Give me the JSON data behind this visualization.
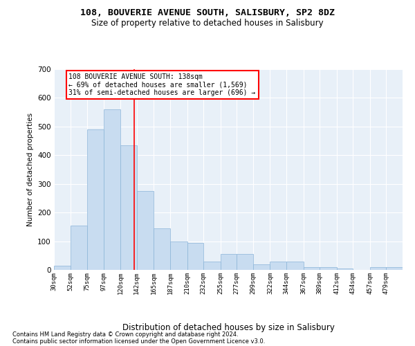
{
  "title": "108, BOUVERIE AVENUE SOUTH, SALISBURY, SP2 8DZ",
  "subtitle": "Size of property relative to detached houses in Salisbury",
  "xlabel": "Distribution of detached houses by size in Salisbury",
  "ylabel": "Number of detached properties",
  "bar_color": "#c8dcf0",
  "bar_edge_color": "#8ab4d8",
  "background_color": "#e8f0f8",
  "grid_color": "#ffffff",
  "red_line_x": 138,
  "annotation_text": "108 BOUVERIE AVENUE SOUTH: 138sqm\n← 69% of detached houses are smaller (1,569)\n31% of semi-detached houses are larger (696) →",
  "footer_line1": "Contains HM Land Registry data © Crown copyright and database right 2024.",
  "footer_line2": "Contains public sector information licensed under the Open Government Licence v3.0.",
  "bin_edges": [
    30,
    52,
    75,
    97,
    120,
    142,
    165,
    187,
    210,
    232,
    255,
    277,
    299,
    322,
    344,
    367,
    389,
    412,
    434,
    457,
    479,
    501
  ],
  "bin_labels": [
    "30sqm",
    "52sqm",
    "75sqm",
    "97sqm",
    "120sqm",
    "142sqm",
    "165sqm",
    "187sqm",
    "210sqm",
    "232sqm",
    "255sqm",
    "277sqm",
    "299sqm",
    "322sqm",
    "344sqm",
    "367sqm",
    "389sqm",
    "412sqm",
    "434sqm",
    "457sqm",
    "479sqm"
  ],
  "counts": [
    15,
    155,
    490,
    560,
    435,
    275,
    145,
    100,
    95,
    30,
    55,
    55,
    20,
    30,
    30,
    10,
    10,
    5,
    0,
    10,
    10
  ],
  "ylim": [
    0,
    700
  ],
  "yticks": [
    0,
    100,
    200,
    300,
    400,
    500,
    600,
    700
  ]
}
